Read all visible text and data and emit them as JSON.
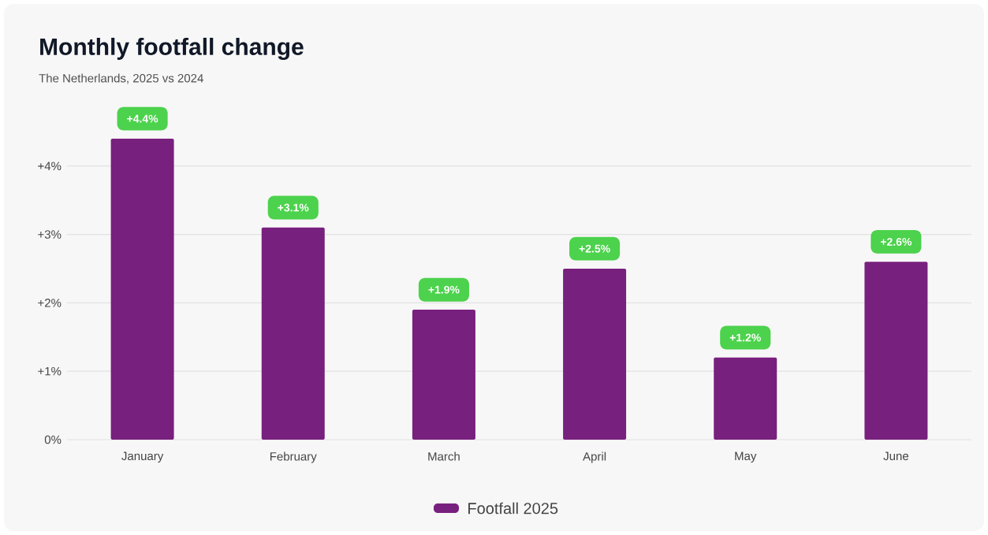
{
  "chart_data": {
    "type": "bar",
    "title": "Monthly footfall change",
    "subtitle": "The Netherlands, 2025 vs 2024",
    "categories": [
      "January",
      "February",
      "March",
      "April",
      "May",
      "June"
    ],
    "series": [
      {
        "name": "Footfall 2025",
        "color": "#78207e",
        "values": [
          4.4,
          3.1,
          1.9,
          2.5,
          1.2,
          2.6
        ]
      }
    ],
    "value_labels": [
      "+4.4%",
      "+3.1%",
      "+1.9%",
      "+2.5%",
      "+1.2%",
      "+2.6%"
    ],
    "ylim": [
      0,
      4.4
    ],
    "yticks": [
      {
        "value": 0,
        "label": "0%"
      },
      {
        "value": 1,
        "label": "+1%"
      },
      {
        "value": 2,
        "label": "+2%"
      },
      {
        "value": 3,
        "label": "+3%"
      },
      {
        "value": 4,
        "label": "+4%"
      }
    ],
    "grid": "y",
    "legend": "bottom"
  }
}
